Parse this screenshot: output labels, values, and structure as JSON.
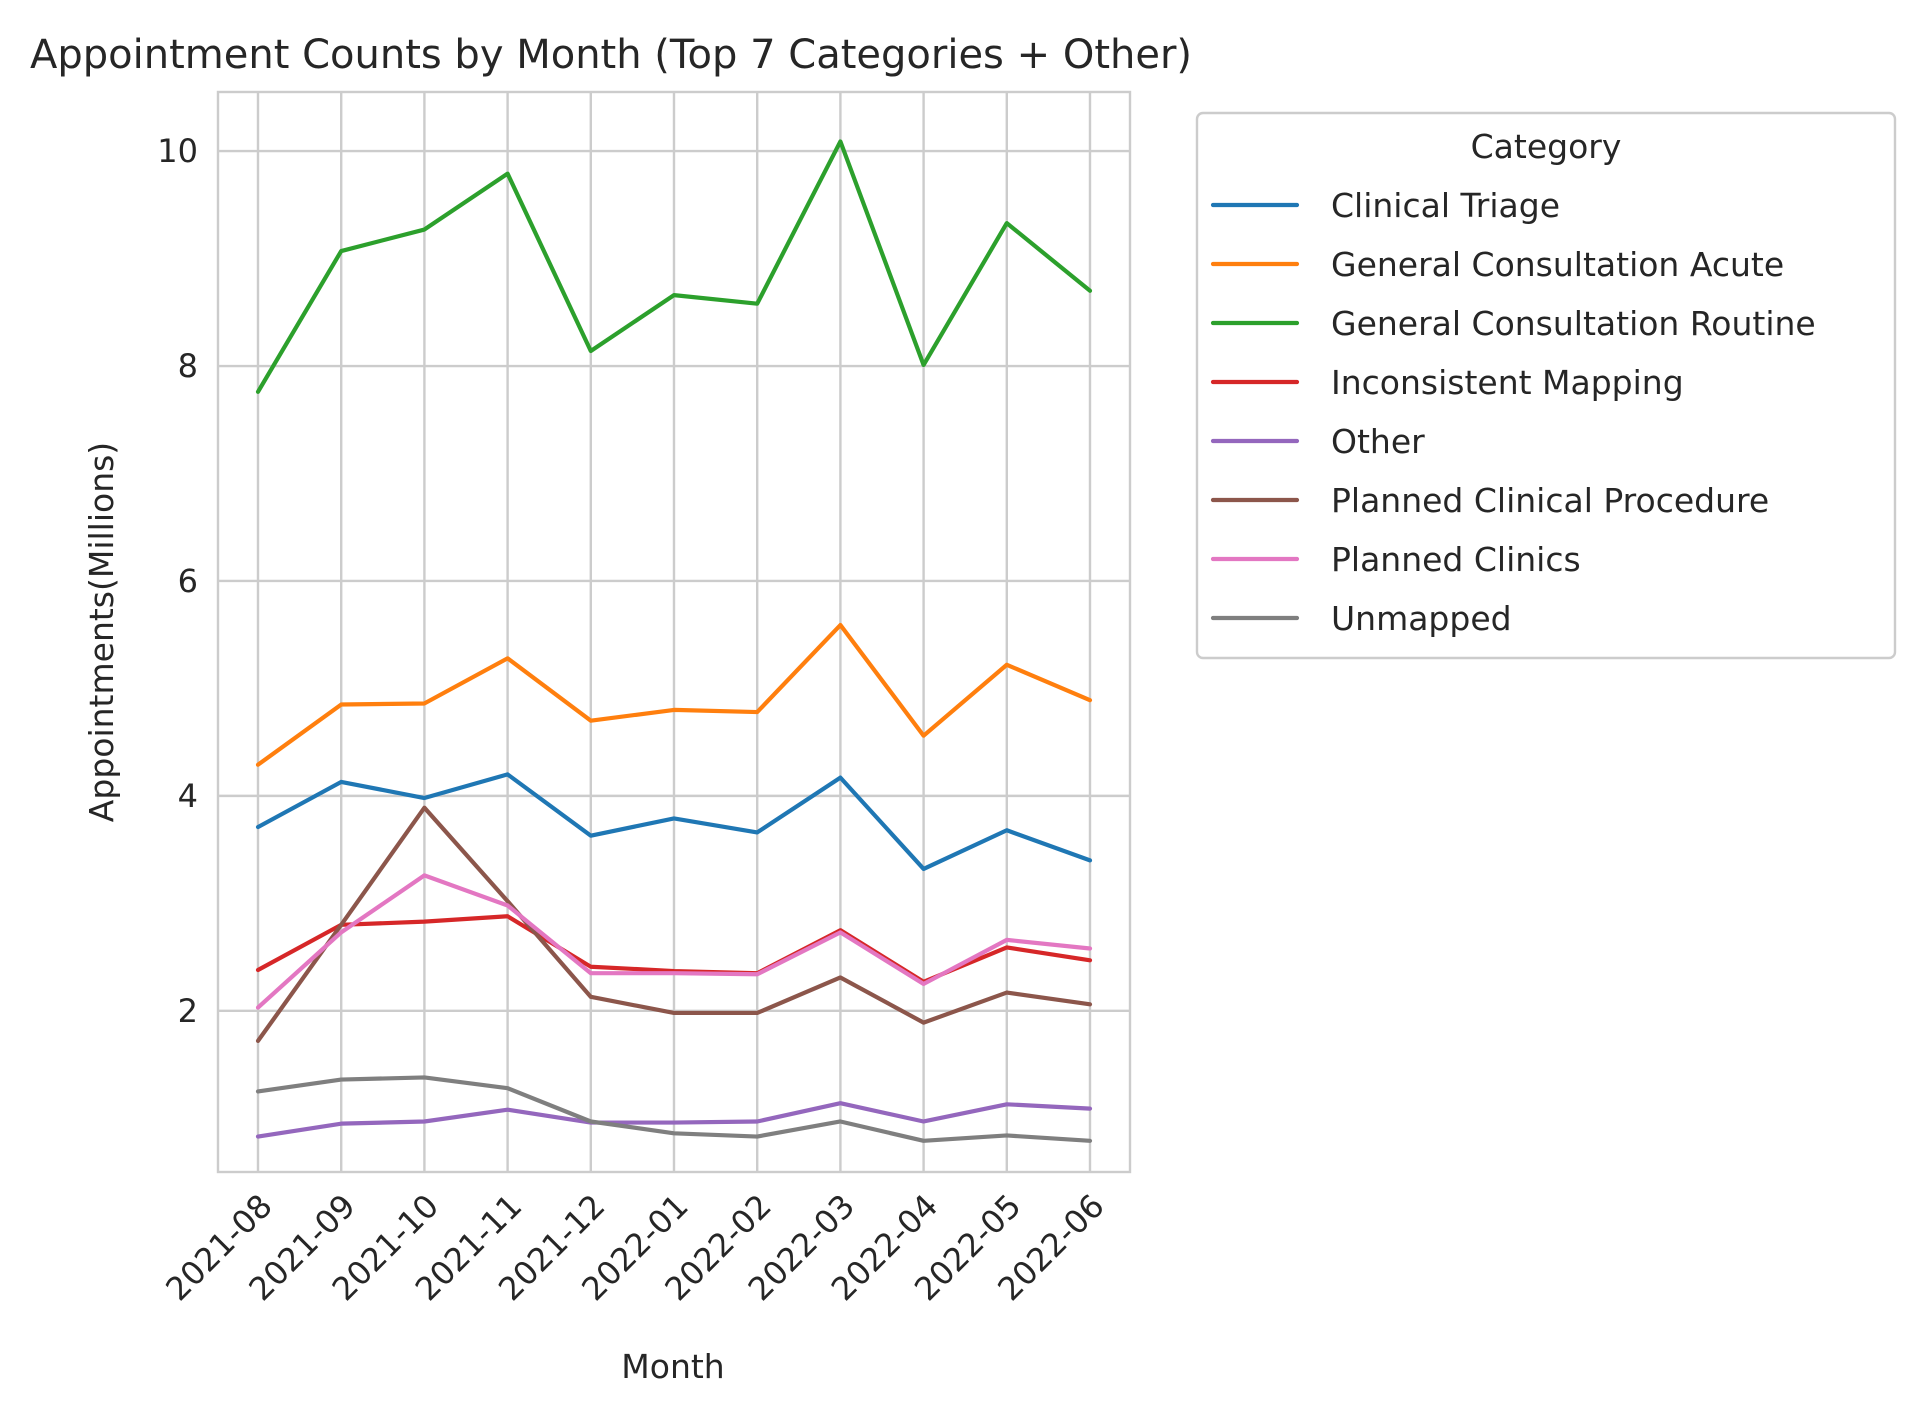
{
  "chart_data": {
    "type": "line",
    "title": "Appointment Counts by Month (Top 7 Categories + Other)",
    "xlabel": "Month",
    "ylabel": "Appointments(Millions)",
    "categories": [
      "2021-08",
      "2021-09",
      "2021-10",
      "2021-11",
      "2021-12",
      "2022-01",
      "2022-02",
      "2022-03",
      "2022-04",
      "2022-05",
      "2022-06"
    ],
    "ylim": [
      0.5,
      10.55
    ],
    "yticks": [
      2,
      4,
      6,
      8,
      10
    ],
    "grid": true,
    "legend": {
      "title": "Category",
      "placement": "outside-right-top"
    },
    "series": [
      {
        "name": "Clinical Triage",
        "color": "#1f77b4",
        "values": [
          3.71,
          4.13,
          3.98,
          4.2,
          3.63,
          3.79,
          3.66,
          4.17,
          3.32,
          3.68,
          3.4
        ]
      },
      {
        "name": "General Consultation Acute",
        "color": "#ff7f0e",
        "values": [
          4.29,
          4.85,
          4.86,
          5.28,
          4.7,
          4.8,
          4.78,
          5.59,
          4.56,
          5.22,
          4.89
        ]
      },
      {
        "name": "General Consultation Routine",
        "color": "#2ca02c",
        "values": [
          7.76,
          9.07,
          9.27,
          9.79,
          8.14,
          8.66,
          8.58,
          10.09,
          8.01,
          9.33,
          8.7
        ]
      },
      {
        "name": "Inconsistent Mapping",
        "color": "#d62728",
        "values": [
          2.38,
          2.8,
          2.83,
          2.88,
          2.41,
          2.37,
          2.35,
          2.75,
          2.27,
          2.59,
          2.47
        ]
      },
      {
        "name": "Other",
        "color": "#9467bd",
        "values": [
          0.83,
          0.95,
          0.97,
          1.08,
          0.96,
          0.96,
          0.97,
          1.14,
          0.97,
          1.13,
          1.09
        ]
      },
      {
        "name": "Planned Clinical Procedure",
        "color": "#8c564b",
        "values": [
          1.72,
          2.8,
          3.89,
          3.02,
          2.13,
          1.98,
          1.98,
          2.31,
          1.89,
          2.17,
          2.06
        ]
      },
      {
        "name": "Planned Clinics",
        "color": "#e377c2",
        "values": [
          2.03,
          2.73,
          3.26,
          2.98,
          2.35,
          2.35,
          2.34,
          2.73,
          2.25,
          2.66,
          2.58
        ]
      },
      {
        "name": "Unmapped",
        "color": "#7f7f7f",
        "values": [
          1.25,
          1.36,
          1.38,
          1.28,
          0.97,
          0.86,
          0.83,
          0.97,
          0.79,
          0.84,
          0.79
        ]
      }
    ]
  }
}
